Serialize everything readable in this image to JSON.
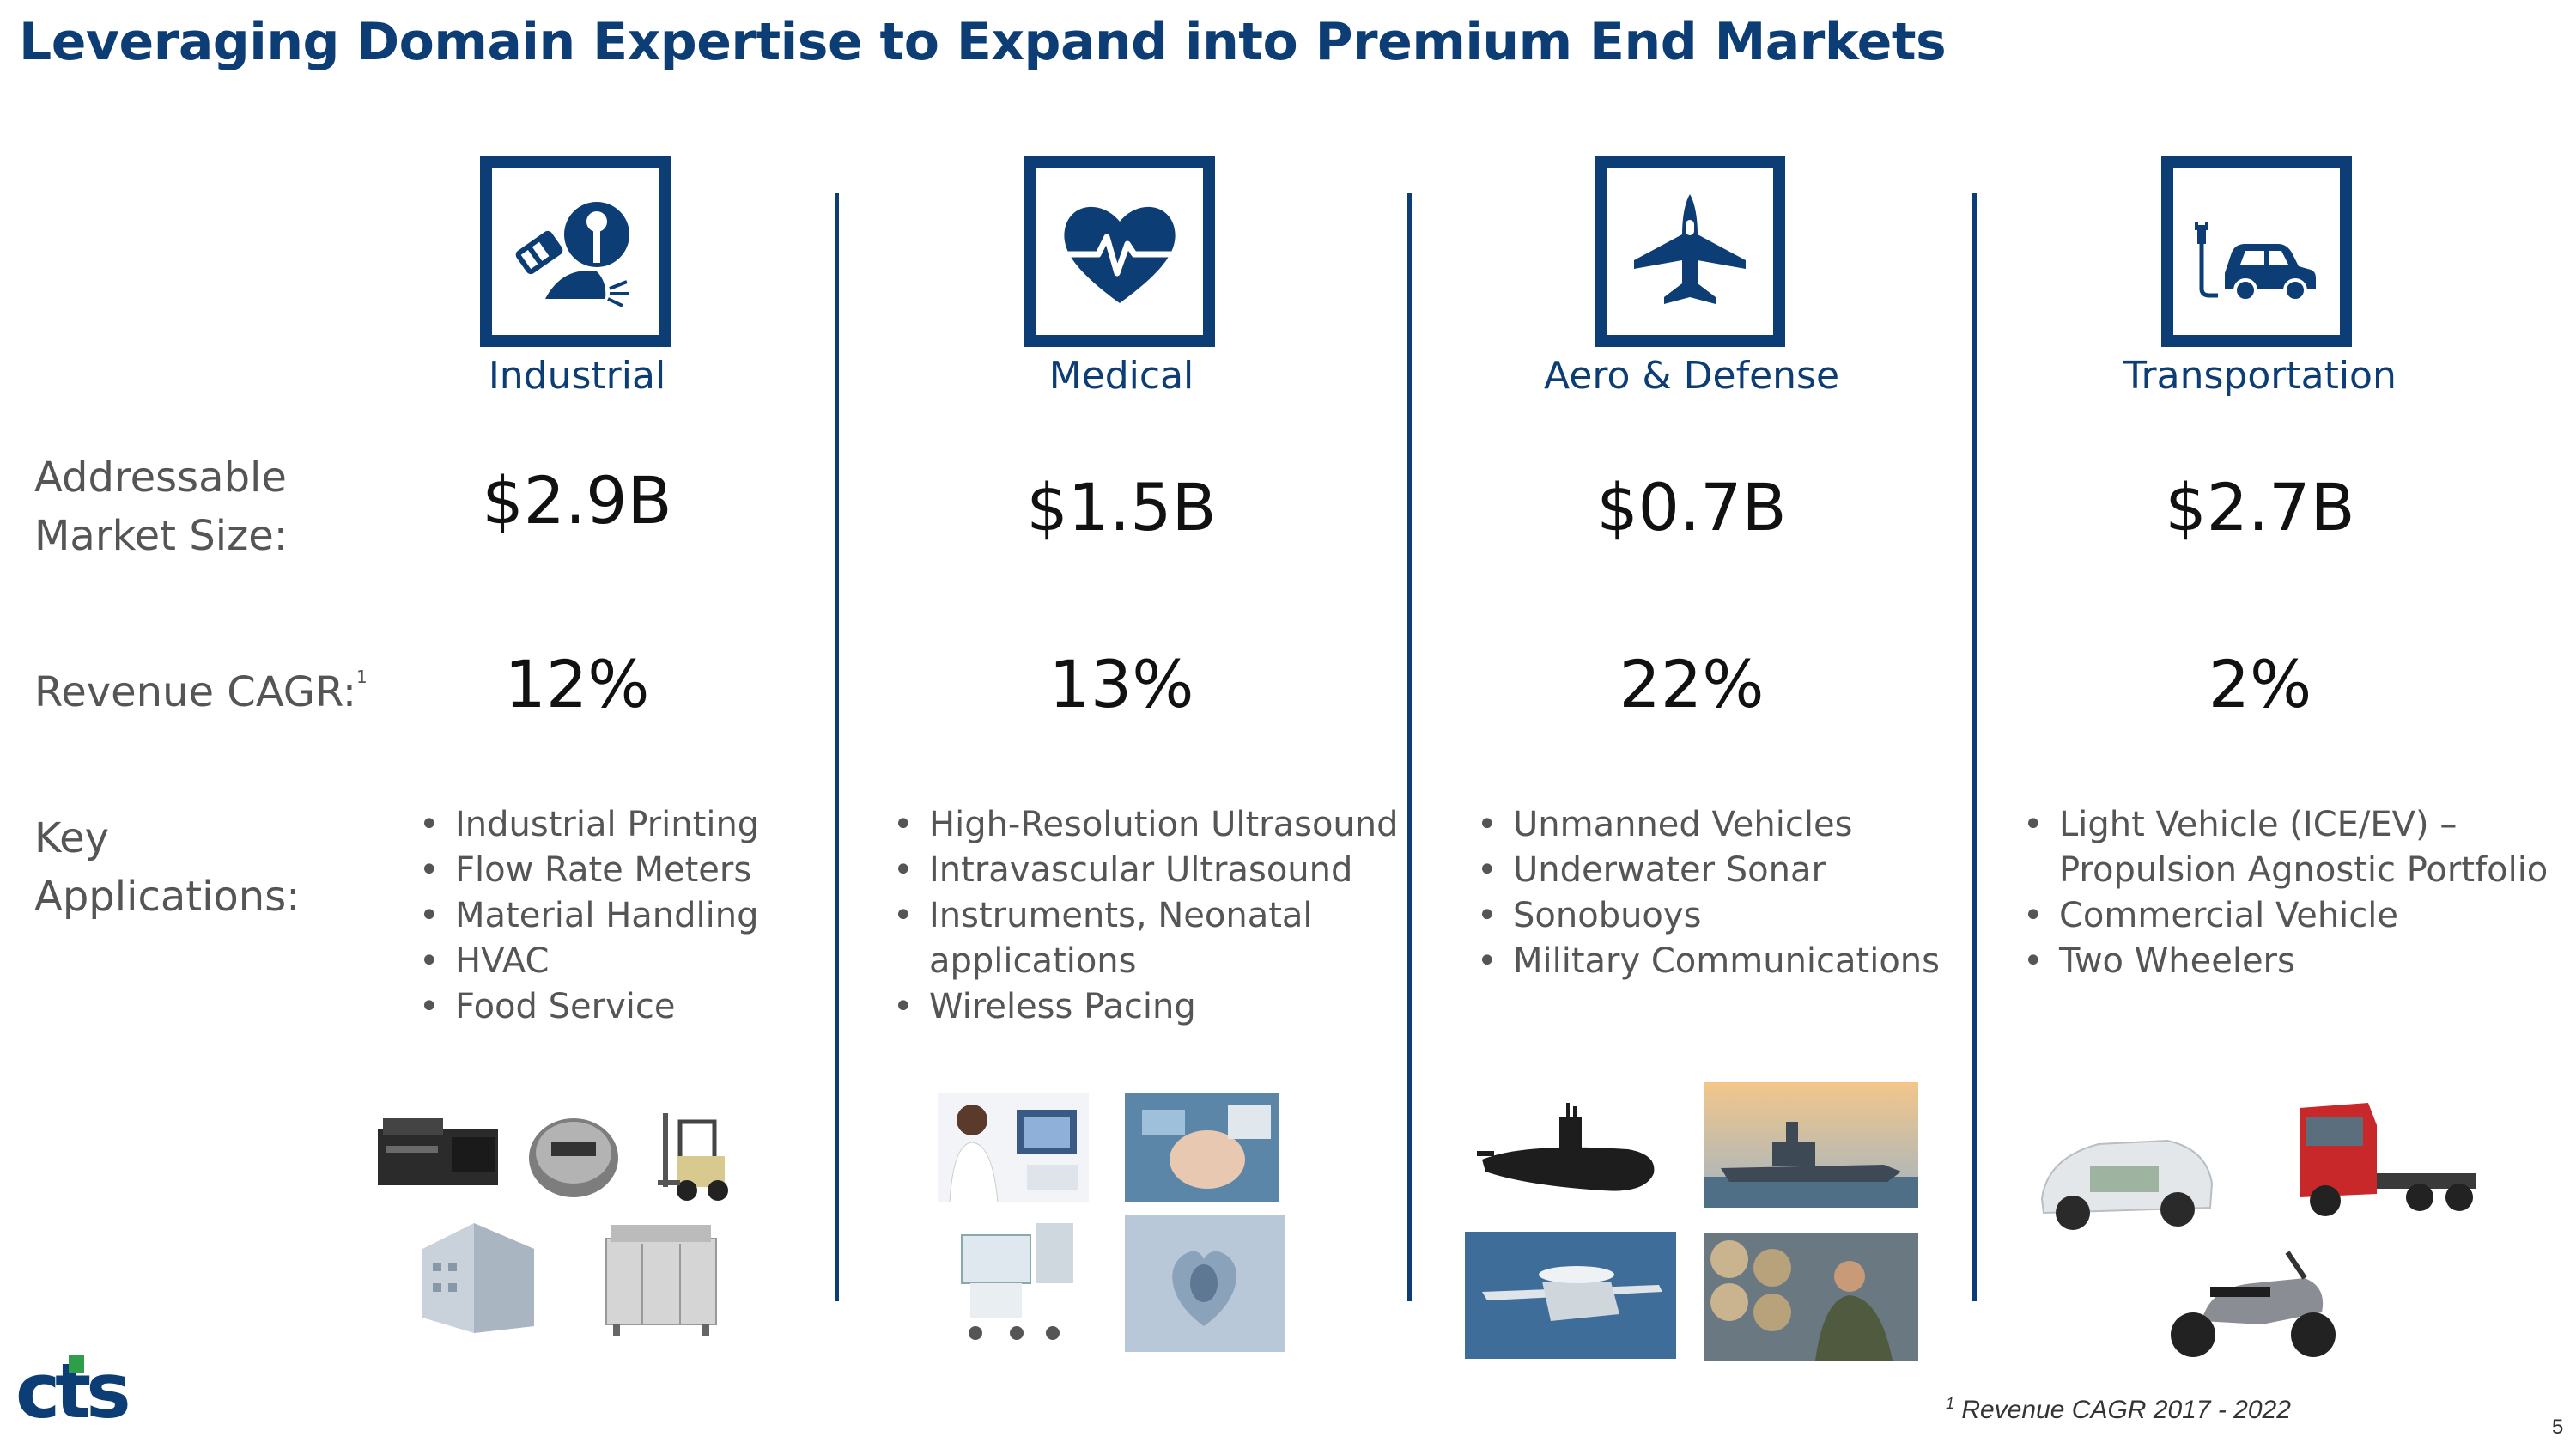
{
  "title": "Leveraging Domain Expertise to Expand into Premium End Markets",
  "row_labels": {
    "market_size": [
      "Addressable",
      "Market Size:"
    ],
    "cagr": "Revenue CAGR:",
    "cagr_sup": "1",
    "apps": [
      "Key",
      "Applications:"
    ]
  },
  "columns": [
    {
      "label": "Industrial",
      "icon": "industrial-robot-icon",
      "market_size": "$2.9B",
      "cagr": "12%",
      "applications": [
        "Industrial Printing",
        "Flow Rate Meters",
        "Material Handling",
        "HVAC",
        "Food Service"
      ]
    },
    {
      "label": "Medical",
      "icon": "heart-pulse-icon",
      "market_size": "$1.5B",
      "cagr": "13%",
      "applications": [
        "High-Resolution Ultrasound",
        "Intravascular Ultrasound",
        "Instruments, Neonatal",
        "applications",
        "Wireless Pacing"
      ]
    },
    {
      "label": "Aero & Defense",
      "icon": "jet-icon",
      "market_size": "$0.7B",
      "cagr": "22%",
      "applications": [
        "Unmanned Vehicles",
        "Underwater Sonar",
        "Sonobuoys",
        "Military Communications"
      ]
    },
    {
      "label": "Transportation",
      "icon": "electric-car-icon",
      "market_size": "$2.7B",
      "cagr": "2%",
      "applications": [
        "Light Vehicle (ICE/EV) –",
        "Propulsion Agnostic Portfolio",
        "Commercial Vehicle",
        "Two Wheelers"
      ]
    }
  ],
  "footnote": {
    "sup": "1",
    "text": " Revenue CAGR 2017 - 2022"
  },
  "page_number": "5",
  "logo_text": "cts",
  "colors": {
    "brand": "#0d3d75",
    "logo_green": "#2e9e48"
  }
}
